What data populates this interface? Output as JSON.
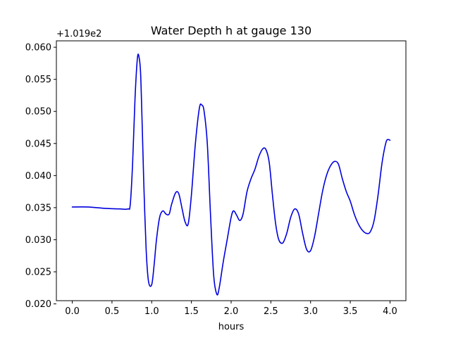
{
  "chart_data": {
    "type": "line",
    "title": "Water Depth h at gauge 130",
    "xlabel": "hours",
    "ylabel": "",
    "offset_label": "+1.019e2",
    "xlim": [
      -0.2,
      4.2
    ],
    "ylim": [
      0.0205,
      0.061
    ],
    "x_ticks": [
      0.0,
      0.5,
      1.0,
      1.5,
      2.0,
      2.5,
      3.0,
      3.5,
      4.0
    ],
    "x_tick_labels": [
      "0.0",
      "0.5",
      "1.0",
      "1.5",
      "2.0",
      "2.5",
      "3.0",
      "3.5",
      "4.0"
    ],
    "y_ticks": [
      0.02,
      0.025,
      0.03,
      0.035,
      0.04,
      0.045,
      0.05,
      0.055,
      0.06
    ],
    "y_tick_labels": [
      "0.020",
      "0.025",
      "0.030",
      "0.035",
      "0.040",
      "0.045",
      "0.050",
      "0.055",
      "0.060"
    ],
    "grid": false,
    "colors": {
      "series": "#0000dd",
      "axis": "#000000"
    },
    "series": [
      {
        "name": "",
        "color": "#0000dd",
        "x": [
          0.0,
          0.2,
          0.4,
          0.6,
          0.7,
          0.73,
          0.76,
          0.79,
          0.82,
          0.84,
          0.86,
          0.88,
          0.9,
          0.93,
          0.96,
          1.0,
          1.03,
          1.06,
          1.1,
          1.14,
          1.18,
          1.22,
          1.25,
          1.3,
          1.34,
          1.38,
          1.42,
          1.46,
          1.5,
          1.55,
          1.6,
          1.63,
          1.66,
          1.7,
          1.74,
          1.78,
          1.82,
          1.85,
          1.9,
          1.95,
          2.0,
          2.03,
          2.07,
          2.11,
          2.15,
          2.2,
          2.25,
          2.3,
          2.35,
          2.4,
          2.44,
          2.48,
          2.52,
          2.56,
          2.6,
          2.65,
          2.7,
          2.75,
          2.8,
          2.85,
          2.9,
          2.95,
          3.0,
          3.05,
          3.1,
          3.15,
          3.2,
          3.25,
          3.3,
          3.35,
          3.4,
          3.45,
          3.5,
          3.55,
          3.6,
          3.65,
          3.7,
          3.75,
          3.8,
          3.85,
          3.9,
          3.95,
          3.98,
          4.0
        ],
        "values": [
          0.0351,
          0.0351,
          0.0349,
          0.0348,
          0.0348,
          0.0355,
          0.042,
          0.052,
          0.0583,
          0.0585,
          0.056,
          0.048,
          0.039,
          0.0285,
          0.0235,
          0.023,
          0.026,
          0.03,
          0.0335,
          0.0345,
          0.034,
          0.034,
          0.0355,
          0.0373,
          0.0372,
          0.035,
          0.0328,
          0.0325,
          0.037,
          0.045,
          0.0505,
          0.051,
          0.05,
          0.045,
          0.034,
          0.0245,
          0.0215,
          0.0225,
          0.0265,
          0.03,
          0.0335,
          0.0345,
          0.0338,
          0.033,
          0.034,
          0.0375,
          0.0395,
          0.041,
          0.043,
          0.0442,
          0.044,
          0.042,
          0.037,
          0.0325,
          0.03,
          0.0295,
          0.031,
          0.0335,
          0.0348,
          0.034,
          0.031,
          0.0285,
          0.0283,
          0.0305,
          0.034,
          0.0375,
          0.04,
          0.0415,
          0.0422,
          0.0418,
          0.0395,
          0.0375,
          0.036,
          0.034,
          0.0325,
          0.0315,
          0.031,
          0.0312,
          0.033,
          0.037,
          0.042,
          0.0452,
          0.0456,
          0.0455
        ]
      }
    ]
  }
}
